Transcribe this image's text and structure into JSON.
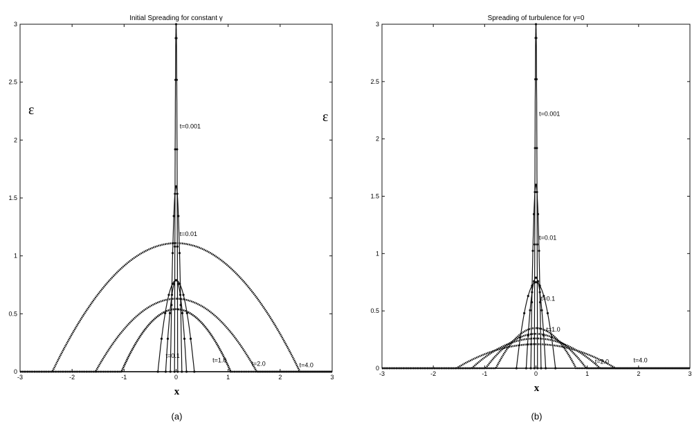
{
  "chart_data": [
    {
      "type": "line",
      "panel": "(a)",
      "title": "Initial Spreading for constant γ",
      "xlabel": "x",
      "ylabel": "ε",
      "xlim": [
        -3,
        3
      ],
      "ylim": [
        0,
        3
      ],
      "xticks": [
        -3,
        -2,
        -1,
        0,
        1,
        2,
        3
      ],
      "yticks": [
        0,
        0.5,
        1,
        1.5,
        2,
        2.5,
        3
      ],
      "grid": false,
      "profile": "parabolic",
      "series": [
        {
          "label": "t=0.001",
          "peak": 3.0,
          "half_width": 0.03
        },
        {
          "label": "",
          "peak": 1.6,
          "half_width": 0.11
        },
        {
          "label": "t=0.01",
          "peak": 1.11,
          "half_width": 2.38
        },
        {
          "label": "",
          "peak": 0.79,
          "half_width": 0.2
        },
        {
          "label": "t=0.1",
          "peak": 0.63,
          "half_width": 1.55
        },
        {
          "label": "t=1.0",
          "peak": 0.54,
          "half_width": 1.05
        },
        {
          "label": "t=2.0",
          "peak": 0.54,
          "half_width": 1.05
        },
        {
          "label": "t=4.0",
          "peak": 0.79,
          "half_width": 0.35
        }
      ],
      "annotations": [
        {
          "text": "t=0.001",
          "x": 0.07,
          "y": 2.1
        },
        {
          "text": "t=0.01",
          "x": 0.07,
          "y": 1.17
        },
        {
          "text": "t=0.1",
          "x": -0.2,
          "y": 0.12
        },
        {
          "text": "t=1.0",
          "x": 0.7,
          "y": 0.08
        },
        {
          "text": "t=2.0",
          "x": 1.45,
          "y": 0.05
        },
        {
          "text": "t=4.0",
          "x": 2.37,
          "y": 0.04
        }
      ]
    },
    {
      "type": "line",
      "panel": "(b)",
      "title": "Spreading of turbulence for γ=0",
      "xlabel": "x",
      "ylabel": "ε",
      "xlim": [
        -3,
        3
      ],
      "ylim": [
        0,
        3
      ],
      "xticks": [
        -3,
        -2,
        -1,
        0,
        1,
        2,
        3
      ],
      "yticks": [
        0,
        0.5,
        1,
        1.5,
        2,
        2.5,
        3
      ],
      "grid": false,
      "profile": "parabolic",
      "series": [
        {
          "label": "t=0.001",
          "peak": 3.0,
          "half_width": 0.03
        },
        {
          "label": "",
          "peak": 1.6,
          "half_width": 0.1
        },
        {
          "label": "t=0.01",
          "peak": 0.79,
          "half_width": 0.19
        },
        {
          "label": "",
          "peak": 0.75,
          "half_width": 0.38
        },
        {
          "label": "t=0.1",
          "peak": 0.35,
          "half_width": 0.78
        },
        {
          "label": "t=1.0",
          "peak": 0.3,
          "half_width": 0.98
        },
        {
          "label": "t=2.0",
          "peak": 0.26,
          "half_width": 1.25
        },
        {
          "label": "t=4.0",
          "peak": 0.21,
          "half_width": 1.55
        }
      ],
      "annotations": [
        {
          "text": "t=0.001",
          "x": 0.06,
          "y": 2.2
        },
        {
          "text": "t=0.01",
          "x": 0.06,
          "y": 1.12
        },
        {
          "text": "t=0.1",
          "x": 0.1,
          "y": 0.59
        },
        {
          "text": "t=1.0",
          "x": 0.2,
          "y": 0.32
        },
        {
          "text": "t=2.0",
          "x": 1.15,
          "y": 0.04
        },
        {
          "text": "t=4.0",
          "x": 1.9,
          "y": 0.05
        }
      ]
    }
  ]
}
